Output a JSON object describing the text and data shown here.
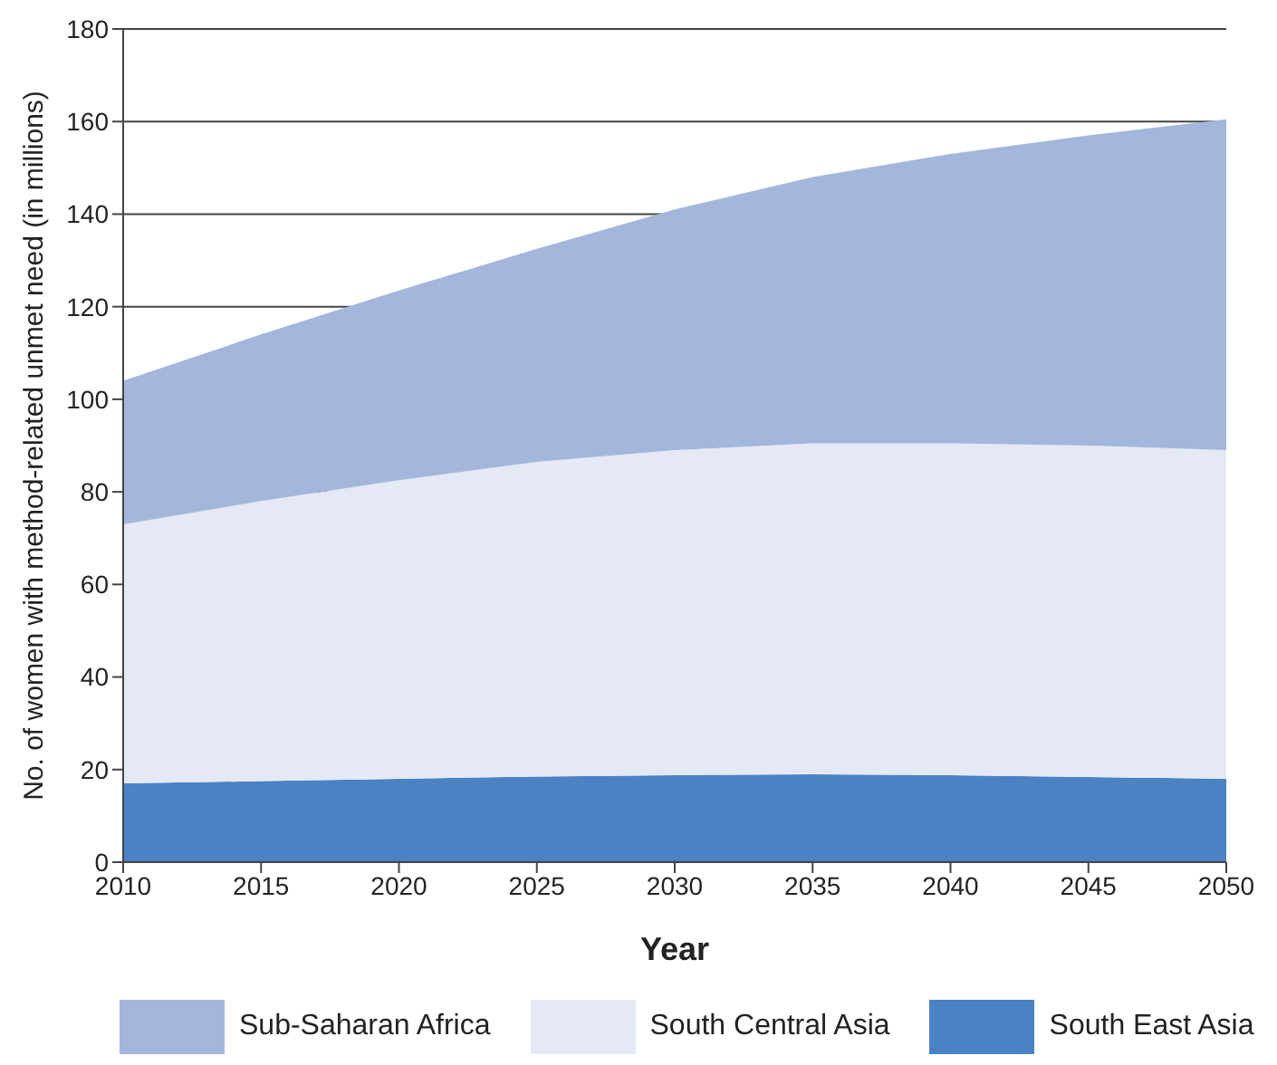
{
  "chart_data": {
    "type": "area",
    "stacked": true,
    "xlabel": "Year",
    "ylabel": "No. of women with method-related unmet need (in millions)",
    "x": [
      2010,
      2015,
      2020,
      2025,
      2030,
      2035,
      2040,
      2045,
      2050
    ],
    "series": [
      {
        "name": "South East Asia",
        "color": "#4a82c3",
        "values": [
          17,
          17.5,
          18,
          18.5,
          18.8,
          19,
          18.8,
          18.4,
          18
        ]
      },
      {
        "name": "South Central Asia",
        "color": "#e4e9f5",
        "values": [
          56,
          60.5,
          64.5,
          68,
          70.2,
          71.5,
          71.7,
          71.6,
          71
        ]
      },
      {
        "name": "Sub-Saharan Africa",
        "color": "#a3b6dc",
        "values": [
          31,
          36,
          41,
          46,
          52,
          57.5,
          62.5,
          67,
          71.5
        ]
      }
    ],
    "xlim": [
      2010,
      2050
    ],
    "xticks": [
      2010,
      2015,
      2020,
      2025,
      2030,
      2035,
      2040,
      2045,
      2050
    ],
    "ylim": [
      0,
      180
    ],
    "yticks": [
      0,
      20,
      40,
      60,
      80,
      100,
      120,
      140,
      160,
      180
    ],
    "grid": "y",
    "legend": "bottom"
  }
}
